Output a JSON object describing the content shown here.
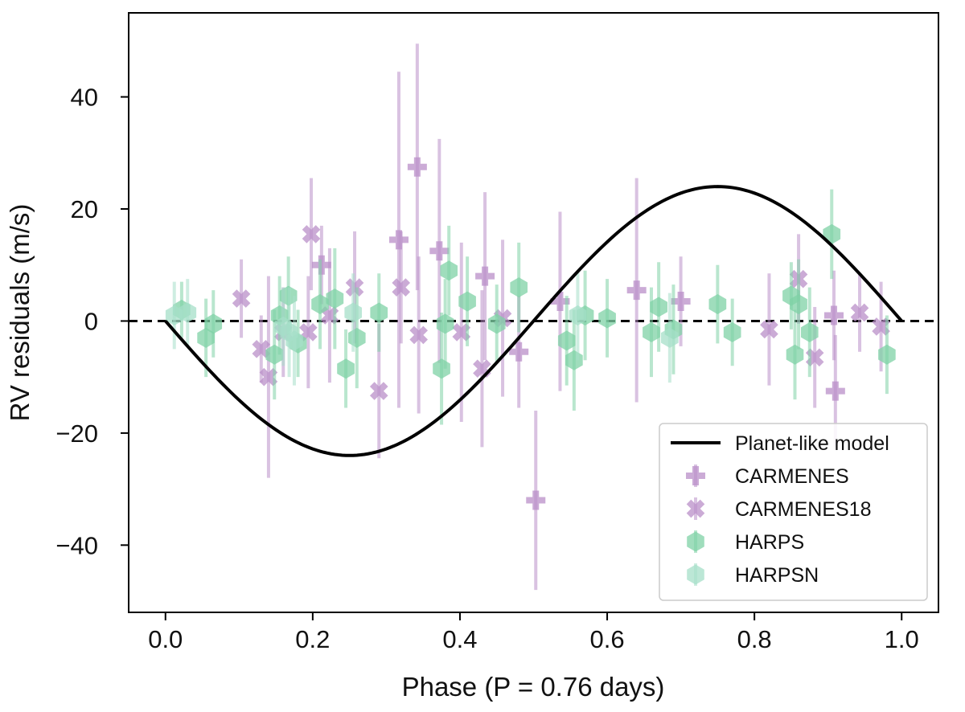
{
  "chart_data": {
    "type": "scatter",
    "xlabel": "Phase (P = 0.76 days)",
    "ylabel": "RV residuals (m/s)",
    "xlim": [
      -0.05,
      1.05
    ],
    "ylim": [
      -52,
      55
    ],
    "x_ticks": [
      0.0,
      0.2,
      0.4,
      0.6,
      0.8,
      1.0
    ],
    "x_tick_labels": [
      "0.0",
      "0.2",
      "0.4",
      "0.6",
      "0.8",
      "1.0"
    ],
    "y_ticks": [
      -40,
      -20,
      0,
      20,
      40
    ],
    "y_tick_labels": [
      "−40",
      "−20",
      "0",
      "20",
      "40"
    ],
    "legend_position": "bottom-right",
    "zero_line": "dashed",
    "model": {
      "name": "Planet-like model",
      "function": "-K*sin(2*pi*phase)",
      "amplitude": 24,
      "color": "#000000"
    },
    "series": [
      {
        "name": "CARMENES",
        "marker": "plus",
        "color": "#b98fc8",
        "points": [
          [
            0.212,
            10,
            7
          ],
          [
            0.317,
            14.5,
            30
          ],
          [
            0.342,
            27.5,
            22
          ],
          [
            0.372,
            12.5,
            20
          ],
          [
            0.434,
            8,
            15
          ],
          [
            0.48,
            -5.5,
            10
          ],
          [
            0.503,
            -32,
            16
          ],
          [
            0.536,
            3.5,
            16
          ],
          [
            0.64,
            5.5,
            20
          ],
          [
            0.7,
            3.5,
            8
          ],
          [
            0.91,
            -12.5,
            10
          ],
          [
            0.908,
            1,
            8
          ]
        ]
      },
      {
        "name": "CARMENES18",
        "marker": "x",
        "color": "#b98fc8",
        "points": [
          [
            0.103,
            4,
            7
          ],
          [
            0.13,
            -5,
            6
          ],
          [
            0.14,
            -10,
            18
          ],
          [
            0.16,
            -2,
            8
          ],
          [
            0.194,
            -2,
            10
          ],
          [
            0.198,
            15.5,
            10
          ],
          [
            0.223,
            1,
            12
          ],
          [
            0.257,
            6,
            10
          ],
          [
            0.29,
            -12.5,
            12
          ],
          [
            0.32,
            6,
            10
          ],
          [
            0.344,
            -2.5,
            14
          ],
          [
            0.402,
            -2,
            16
          ],
          [
            0.43,
            -8.5,
            14
          ],
          [
            0.458,
            0.5,
            14
          ],
          [
            0.86,
            7.5,
            8
          ],
          [
            0.882,
            -6.5,
            9
          ],
          [
            0.943,
            1.5,
            7
          ],
          [
            0.972,
            -1,
            8
          ],
          [
            0.82,
            -1.5,
            10
          ]
        ]
      },
      {
        "name": "HARPS",
        "marker": "hexagon",
        "color": "#7fd1a5",
        "points": [
          [
            0.022,
            2,
            5
          ],
          [
            0.055,
            -3,
            7
          ],
          [
            0.065,
            -0.5,
            6
          ],
          [
            0.148,
            -6,
            8
          ],
          [
            0.155,
            1,
            7
          ],
          [
            0.167,
            4.5,
            7
          ],
          [
            0.18,
            -4,
            6
          ],
          [
            0.21,
            3,
            8
          ],
          [
            0.23,
            4,
            9
          ],
          [
            0.245,
            -8.5,
            7
          ],
          [
            0.26,
            -3,
            9
          ],
          [
            0.29,
            1.5,
            7
          ],
          [
            0.375,
            -8.5,
            10
          ],
          [
            0.38,
            -0.5,
            8
          ],
          [
            0.385,
            9,
            8
          ],
          [
            0.41,
            3.5,
            8
          ],
          [
            0.45,
            -0.5,
            7
          ],
          [
            0.48,
            6,
            8
          ],
          [
            0.545,
            -3.5,
            8
          ],
          [
            0.555,
            -7,
            9
          ],
          [
            0.57,
            1,
            8
          ],
          [
            0.6,
            0.5,
            7
          ],
          [
            0.66,
            -2,
            8
          ],
          [
            0.67,
            2.5,
            8
          ],
          [
            0.69,
            -1.5,
            8
          ],
          [
            0.75,
            3,
            7
          ],
          [
            0.77,
            -2,
            6
          ],
          [
            0.85,
            4.5,
            6
          ],
          [
            0.855,
            -6,
            8
          ],
          [
            0.86,
            3,
            8
          ],
          [
            0.875,
            -2,
            8
          ],
          [
            0.905,
            15.5,
            8
          ],
          [
            0.98,
            -6,
            7
          ]
        ]
      },
      {
        "name": "HARPSN",
        "marker": "hexagon",
        "color": "#a6dfc8",
        "points": [
          [
            0.012,
            1,
            6
          ],
          [
            0.03,
            1.5,
            6
          ],
          [
            0.16,
            -1,
            7
          ],
          [
            0.168,
            -2,
            8
          ],
          [
            0.175,
            -3.5,
            8
          ],
          [
            0.255,
            1.5,
            7
          ],
          [
            0.56,
            1,
            8
          ],
          [
            0.685,
            -3,
            8
          ]
        ]
      }
    ]
  }
}
